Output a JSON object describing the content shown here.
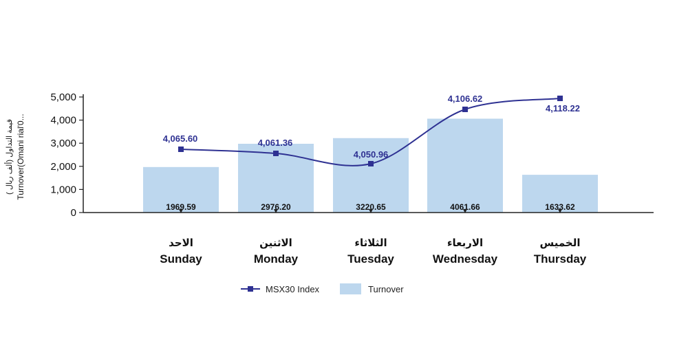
{
  "chart_data": {
    "type": "bar",
    "categories": [
      "Sunday",
      "Monday",
      "Tuesday",
      "Wednesday",
      "Thursday"
    ],
    "categories_ar": [
      "الاحد",
      "الاثنين",
      "الثلاثاء",
      "الاربعاء",
      "الخميس"
    ],
    "ylabel_line1": "( قيمة التداول (ألف ريال",
    "ylabel_line2": "Turnover(Omani rial'0...",
    "ylim": [
      0,
      5000
    ],
    "yticks": [
      0,
      1000,
      2000,
      3000,
      4000,
      5000
    ],
    "ytick_labels": [
      "0",
      "1,000",
      "2,000",
      "3,000",
      "4,000",
      "5,000"
    ],
    "series": [
      {
        "name": "Turnover",
        "type": "bar",
        "color": "#bdd7ee",
        "values": [
          1969.59,
          2976.2,
          3220.65,
          4061.66,
          1633.62
        ],
        "labels": [
          "1969.59",
          "2976.20",
          "3220.65",
          "4061.66",
          "1633.62"
        ]
      },
      {
        "name": "MSX30 Index",
        "type": "line",
        "color": "#2e3192",
        "values": [
          4065.6,
          4061.36,
          4050.96,
          4106.62,
          4118.22
        ],
        "labels": [
          "4,065.60",
          "4,061.36",
          "4,050.96",
          "4,106.62",
          "4,118.22"
        ]
      }
    ],
    "legend_position": "bottom",
    "grid": false
  }
}
